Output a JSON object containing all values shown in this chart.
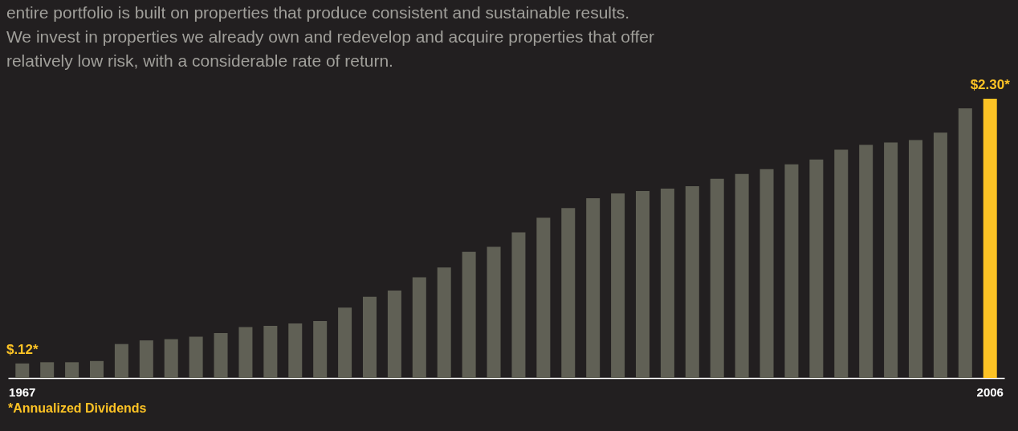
{
  "chart_data": {
    "type": "bar",
    "title": "entire portfolio is built on properties that produce consistent and sustainable results. We invest in properties we already own and redevelop and acquire properties that offer relatively low risk, with a considerable rate of return.",
    "categories": [
      "1967",
      null,
      null,
      null,
      null,
      null,
      null,
      null,
      null,
      null,
      null,
      null,
      null,
      null,
      null,
      null,
      null,
      null,
      null,
      null,
      null,
      null,
      null,
      null,
      null,
      null,
      null,
      null,
      null,
      null,
      null,
      null,
      null,
      null,
      null,
      null,
      null,
      null,
      null,
      "2006"
    ],
    "values": [
      0.12,
      0.13,
      0.13,
      0.14,
      0.28,
      0.31,
      0.32,
      0.34,
      0.37,
      0.42,
      0.43,
      0.45,
      0.47,
      0.58,
      0.67,
      0.72,
      0.83,
      0.91,
      1.04,
      1.08,
      1.2,
      1.32,
      1.4,
      1.48,
      1.52,
      1.54,
      1.56,
      1.58,
      1.64,
      1.68,
      1.72,
      1.76,
      1.8,
      1.88,
      1.92,
      1.94,
      1.96,
      2.02,
      2.22,
      2.3
    ],
    "colors": [
      "#606055",
      "#606055",
      "#606055",
      "#606055",
      "#606055",
      "#606055",
      "#606055",
      "#606055",
      "#606055",
      "#606055",
      "#606055",
      "#606055",
      "#606055",
      "#606055",
      "#606055",
      "#606055",
      "#606055",
      "#606055",
      "#606055",
      "#606055",
      "#606055",
      "#606055",
      "#606055",
      "#606055",
      "#606055",
      "#606055",
      "#606055",
      "#606055",
      "#606055",
      "#606055",
      "#606055",
      "#606055",
      "#606055",
      "#606055",
      "#606055",
      "#606055",
      "#606055",
      "#606055",
      "#606055",
      "#fdc325"
    ],
    "value_labels": [
      "$.12*",
      null,
      null,
      null,
      null,
      null,
      null,
      null,
      null,
      null,
      null,
      null,
      null,
      null,
      null,
      null,
      null,
      null,
      null,
      null,
      null,
      null,
      null,
      null,
      null,
      null,
      null,
      null,
      null,
      null,
      null,
      null,
      null,
      null,
      null,
      null,
      null,
      null,
      null,
      "$2.30*"
    ],
    "annotations": [
      "*Annualized Dividends"
    ]
  }
}
